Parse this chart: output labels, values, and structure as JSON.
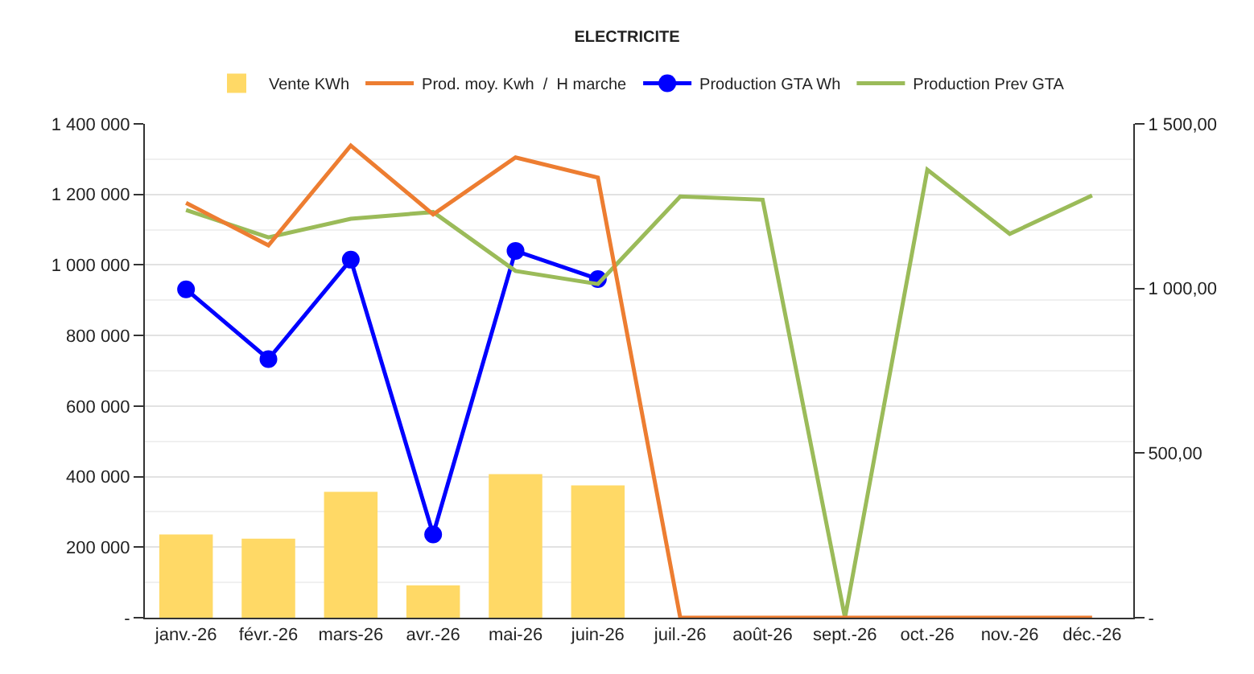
{
  "chart_data": {
    "type": "bar",
    "title": "ELECTRICITE",
    "categories": [
      "janv.-26",
      "févr.-26",
      "mars-26",
      "avr.-26",
      "mai-26",
      "juin-26",
      "juil.-26",
      "août-26",
      "sept.-26",
      "oct.-26",
      "nov.-26",
      "déc.-26"
    ],
    "series": [
      {
        "name": "Vente KWh",
        "color": "#ffd966",
        "values": [
          236000,
          224000,
          357000,
          92000,
          407000,
          375000,
          null,
          null,
          null,
          null,
          null,
          null
        ]
      },
      {
        "name": "Prod. moy. Kwh  /  H marche",
        "type": "line",
        "axis": "y2",
        "color": "#ed7d31",
        "marker": "none",
        "values": [
          1260,
          1131,
          1434,
          1225,
          1398,
          1337,
          0,
          0,
          0,
          0,
          0,
          0
        ]
      },
      {
        "name": "Production GTA Wh",
        "type": "line",
        "color": "#0000ff",
        "marker": "circle",
        "values": [
          931000,
          733000,
          1015000,
          236000,
          1040000,
          960000,
          null,
          null,
          null,
          null,
          null,
          null
        ]
      },
      {
        "name": "Production Prev GTA",
        "type": "line",
        "color": "#9bbb59",
        "marker": "none",
        "values": [
          1156000,
          1078000,
          1131000,
          1150000,
          983000,
          946000,
          1194000,
          1185000,
          0,
          1270000,
          1088000,
          1197000
        ]
      }
    ],
    "ylim": [
      0,
      1400000
    ],
    "yticks": [
      {
        "value": 0,
        "label": "-"
      },
      {
        "value": 200000,
        "label": "200 000"
      },
      {
        "value": 400000,
        "label": "400 000"
      },
      {
        "value": 600000,
        "label": "600 000"
      },
      {
        "value": 800000,
        "label": "800 000"
      },
      {
        "value": 1000000,
        "label": "1 000 000"
      },
      {
        "value": 1200000,
        "label": "1 200 000"
      },
      {
        "value": 1400000,
        "label": "1 400 000"
      }
    ],
    "y2lim": [
      0,
      1500
    ],
    "y2ticks": [
      {
        "value": 0,
        "label": "-"
      },
      {
        "value": 500,
        "label": "500,00"
      },
      {
        "value": 1000,
        "label": "1 000,00"
      },
      {
        "value": 1500,
        "label": "1 500,00"
      }
    ],
    "grid": "y",
    "legend": "top"
  }
}
